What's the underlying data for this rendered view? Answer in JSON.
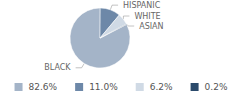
{
  "chart_data": {
    "type": "pie",
    "categories": [
      "BLACK",
      "HISPANIC",
      "WHITE",
      "ASIAN"
    ],
    "values": [
      82.6,
      11.0,
      6.2,
      0.2
    ],
    "value_labels": [
      "82.6%",
      "11.0%",
      "6.2%",
      "0.2%"
    ],
    "colors": [
      "#a4b4c8",
      "#6d88a8",
      "#d0dae5",
      "#2b4a6b"
    ],
    "legend": "bottom"
  }
}
